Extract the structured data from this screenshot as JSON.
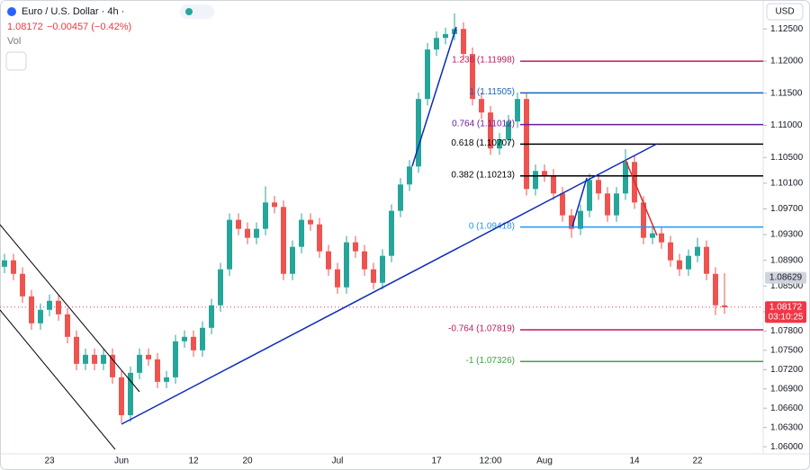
{
  "chart_data": {
    "type": "candlestick",
    "title": "Euro / U.S. Dollar · 4h ·",
    "last_price": "1.08172",
    "change": "−0.00457 (−0.42%)",
    "volume_label": "Vol",
    "currency": "USD",
    "categories": [
      null,
      null,
      null,
      null,
      null,
      "23",
      null,
      null,
      null,
      null,
      null,
      null,
      null,
      "Jun",
      null,
      null,
      null,
      null,
      null,
      null,
      null,
      "12",
      null,
      null,
      null,
      null,
      null,
      "20",
      null,
      null,
      null,
      null,
      null,
      null,
      null,
      null,
      null,
      "Jul",
      null,
      null,
      null,
      null,
      null,
      null,
      null,
      null,
      null,
      null,
      "17",
      null,
      null,
      null,
      null,
      null,
      "12:00",
      null,
      null,
      null,
      null,
      null,
      "Aug",
      null,
      null,
      null,
      null,
      null,
      null,
      null,
      null,
      null,
      "14",
      null,
      null,
      null,
      null,
      null,
      null,
      "22",
      null,
      null,
      null
    ],
    "open": [
      1.088,
      1.089,
      1.0869,
      1.0834,
      1.0792,
      1.0813,
      1.0827,
      1.0806,
      1.0771,
      1.0729,
      1.0743,
      1.0729,
      1.0743,
      1.0708,
      1.0649,
      1.0715,
      1.0743,
      1.0736,
      1.0701,
      1.0708,
      1.0764,
      1.0771,
      1.075,
      1.0785,
      1.082,
      1.0876,
      1.0953,
      1.0939,
      1.0925,
      1.0939,
      1.098,
      1.0973,
      1.0869,
      1.0911,
      1.0953,
      1.0946,
      1.0904,
      1.0876,
      1.0848,
      1.0918,
      1.0904,
      1.0876,
      1.0855,
      1.0897,
      1.0967,
      1.1008,
      1.1036,
      1.1141,
      1.1218,
      1.1236,
      1.1242,
      1.125,
      1.1211,
      1.1141,
      1.112,
      1.1064,
      1.1078,
      1.1106,
      1.1141,
      1.1001,
      1.1029,
      1.1022,
      1.0994,
      1.096,
      1.0939,
      1.0967,
      1.1015,
      1.0994,
      1.096,
      1.0994,
      1.1043,
      1.098,
      1.0925,
      1.0932,
      1.0918,
      1.089,
      1.0876,
      1.0897,
      1.0911,
      1.0869,
      1.082
    ],
    "high": [
      1.09,
      1.09,
      1.0879,
      1.0844,
      1.0823,
      1.0837,
      1.0837,
      1.0816,
      1.0781,
      1.0753,
      1.0753,
      1.0753,
      1.0753,
      1.0718,
      1.0725,
      1.0753,
      1.0753,
      1.0746,
      1.0718,
      1.0774,
      1.0781,
      1.0781,
      1.0795,
      1.083,
      1.0886,
      1.0963,
      1.0963,
      1.0949,
      1.0949,
      1.1005,
      1.099,
      1.0983,
      1.0921,
      1.0963,
      1.0963,
      1.0956,
      1.0914,
      1.0886,
      1.0928,
      1.0928,
      1.0914,
      1.0886,
      1.0907,
      1.0977,
      1.1018,
      1.1046,
      1.1151,
      1.1228,
      1.1246,
      1.1252,
      1.1274,
      1.126,
      1.1221,
      1.1151,
      1.113,
      1.1088,
      1.1116,
      1.1151,
      1.1151,
      1.1039,
      1.1039,
      1.1032,
      1.1004,
      1.097,
      1.0977,
      1.1025,
      1.1025,
      1.1004,
      1.1004,
      1.1063,
      1.1053,
      1.099,
      1.0942,
      1.0942,
      1.0928,
      1.09,
      1.0907,
      1.0925,
      1.0921,
      1.0879,
      1.087
    ],
    "low": [
      1.087,
      1.0859,
      1.0824,
      1.0782,
      1.0782,
      1.0803,
      1.0796,
      1.0761,
      1.0719,
      1.0719,
      1.0719,
      1.0719,
      1.0698,
      1.0637,
      1.0639,
      1.0705,
      1.0726,
      1.0691,
      1.0691,
      1.0698,
      1.0754,
      1.074,
      1.074,
      1.0775,
      1.081,
      1.0866,
      1.0929,
      1.0915,
      1.0915,
      1.0929,
      1.0963,
      1.0859,
      1.0859,
      1.0901,
      1.0936,
      1.0894,
      1.0866,
      1.0838,
      1.0838,
      1.0894,
      1.0866,
      1.0845,
      1.0845,
      1.0887,
      1.0957,
      1.0998,
      1.1026,
      1.1131,
      1.1208,
      1.1226,
      1.1232,
      1.1201,
      1.1131,
      1.111,
      1.1054,
      1.1054,
      1.1068,
      1.1096,
      1.0991,
      1.0991,
      1.1012,
      1.0984,
      1.095,
      1.0925,
      1.0929,
      1.0957,
      1.0984,
      1.095,
      1.095,
      1.0984,
      1.097,
      1.0915,
      1.0915,
      1.0908,
      1.088,
      1.0866,
      1.0866,
      1.0887,
      1.0859,
      1.0805,
      1.0807
    ],
    "close": [
      1.089,
      1.0869,
      1.0834,
      1.0792,
      1.0813,
      1.0827,
      1.0806,
      1.0771,
      1.0729,
      1.0743,
      1.0729,
      1.0743,
      1.0708,
      1.0649,
      1.0715,
      1.0743,
      1.0736,
      1.0701,
      1.0708,
      1.0764,
      1.0771,
      1.075,
      1.0785,
      1.082,
      1.0876,
      1.0953,
      1.0939,
      1.0925,
      1.0939,
      1.098,
      1.0973,
      1.0869,
      1.0911,
      1.0953,
      1.0946,
      1.0904,
      1.0876,
      1.0848,
      1.0918,
      1.0904,
      1.0876,
      1.0855,
      1.0897,
      1.0967,
      1.1008,
      1.1036,
      1.1141,
      1.1218,
      1.1236,
      1.1242,
      1.125,
      1.1211,
      1.1141,
      1.112,
      1.1064,
      1.1078,
      1.1106,
      1.1141,
      1.1001,
      1.1029,
      1.1022,
      1.0994,
      1.096,
      1.0939,
      1.0967,
      1.1015,
      1.0994,
      1.096,
      1.0994,
      1.1043,
      1.098,
      1.0925,
      1.0932,
      1.0918,
      1.089,
      1.0876,
      1.0897,
      1.0911,
      1.0869,
      1.082,
      1.0817
    ],
    "up_color": "#26a69a",
    "down_color": "#ef5350",
    "ylim": [
      1.0589,
      1.1288
    ],
    "yticks": [
      {
        "value": 1.06,
        "label": "1.06000"
      },
      {
        "value": 1.063,
        "label": "1.06300"
      },
      {
        "value": 1.066,
        "label": "1.06600"
      },
      {
        "value": 1.069,
        "label": "1.06900"
      },
      {
        "value": 1.072,
        "label": "1.07200"
      },
      {
        "value": 1.075,
        "label": "1.07500"
      },
      {
        "value": 1.078,
        "label": "1.07800"
      },
      {
        "value": 1.081,
        "label": "1.08100"
      },
      {
        "value": 1.085,
        "label": "1.08500"
      },
      {
        "value": 1.089,
        "label": "1.08900"
      },
      {
        "value": 1.093,
        "label": "1.09300"
      },
      {
        "value": 1.097,
        "label": "1.09700"
      },
      {
        "value": 1.101,
        "label": "1.10100"
      },
      {
        "value": 1.105,
        "label": "1.10500"
      },
      {
        "value": 1.11,
        "label": "1.11000"
      },
      {
        "value": 1.115,
        "label": "1.11500"
      },
      {
        "value": 1.12,
        "label": "1.12000"
      },
      {
        "value": 1.125,
        "label": "1.12500"
      }
    ],
    "fib_levels": [
      {
        "label": "1.236 (1.11998)",
        "value": 1.11998,
        "color": "#c2185b"
      },
      {
        "label": "1 (1.11505)",
        "value": 1.11505,
        "color": "#1565c0"
      },
      {
        "label": "0.764 (1.11012)",
        "value": 1.11012,
        "color": "#6a1b9a"
      },
      {
        "label": "0.618 (1.10707)",
        "value": 1.10707,
        "color": "#000000"
      },
      {
        "label": "0.382 (1.10213)",
        "value": 1.10213,
        "color": "#000000"
      },
      {
        "label": "0 (1.09418)",
        "value": 1.09418,
        "color": "#2196f3"
      },
      {
        "label": "-0.764 (1.07819)",
        "value": 1.07819,
        "color": "#c2185b"
      },
      {
        "label": "-1 (1.07326)",
        "value": 1.07326,
        "color": "#43a047"
      }
    ],
    "price_markers": [
      {
        "label": "1.08629",
        "value": 1.08629,
        "color": "#d1d4dc"
      },
      {
        "label": "1.08172",
        "sublabel": "03:10:25",
        "value": 1.08172,
        "color": "#f23645"
      }
    ]
  }
}
